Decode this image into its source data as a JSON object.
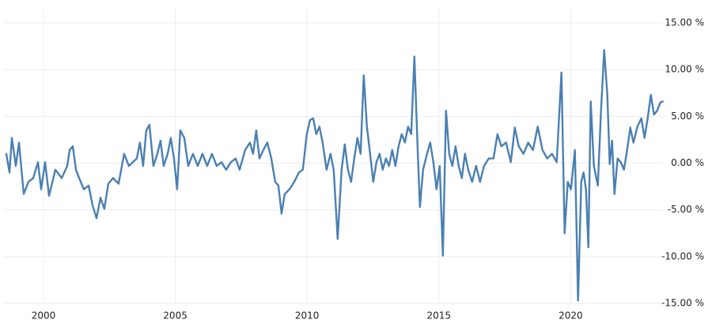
{
  "chart_data": {
    "type": "line",
    "x": [
      1998.59,
      1998.71,
      1998.8,
      1998.95,
      1999.07,
      1999.25,
      1999.43,
      1999.61,
      1999.79,
      1999.91,
      2000.06,
      2000.21,
      2000.45,
      2000.69,
      2000.9,
      2000.99,
      2001.11,
      2001.23,
      2001.35,
      2001.53,
      2001.71,
      2001.86,
      2002.01,
      2002.16,
      2002.31,
      2002.46,
      2002.64,
      2002.85,
      2003.06,
      2003.24,
      2003.39,
      2003.54,
      2003.66,
      2003.78,
      2003.9,
      2004.02,
      2004.17,
      2004.32,
      2004.44,
      2004.56,
      2004.71,
      2004.83,
      2004.95,
      2005.07,
      2005.19,
      2005.34,
      2005.49,
      2005.67,
      2005.85,
      2006.03,
      2006.21,
      2006.39,
      2006.57,
      2006.75,
      2006.93,
      2007.11,
      2007.29,
      2007.44,
      2007.65,
      2007.83,
      2007.95,
      2008.07,
      2008.19,
      2008.34,
      2008.49,
      2008.64,
      2008.79,
      2008.91,
      2009.03,
      2009.15,
      2009.33,
      2009.51,
      2009.69,
      2009.84,
      2009.99,
      2010.11,
      2010.23,
      2010.35,
      2010.47,
      2010.59,
      2010.74,
      2010.89,
      2011.01,
      2011.16,
      2011.31,
      2011.43,
      2011.55,
      2011.67,
      2011.79,
      2011.91,
      2012.03,
      2012.15,
      2012.27,
      2012.39,
      2012.51,
      2012.63,
      2012.75,
      2012.87,
      2012.99,
      2013.11,
      2013.23,
      2013.35,
      2013.47,
      2013.59,
      2013.71,
      2013.83,
      2013.95,
      2014.07,
      2014.19,
      2014.28,
      2014.4,
      2014.55,
      2014.67,
      2014.79,
      2014.91,
      2015.03,
      2015.15,
      2015.27,
      2015.39,
      2015.51,
      2015.63,
      2015.75,
      2015.87,
      2015.99,
      2016.11,
      2016.26,
      2016.41,
      2016.56,
      2016.71,
      2016.89,
      2017.07,
      2017.22,
      2017.37,
      2017.55,
      2017.73,
      2017.88,
      2018.03,
      2018.21,
      2018.39,
      2018.57,
      2018.75,
      2018.93,
      2019.11,
      2019.29,
      2019.47,
      2019.65,
      2019.77,
      2019.89,
      2020.01,
      2020.16,
      2020.28,
      2020.4,
      2020.49,
      2020.58,
      2020.67,
      2020.76,
      2020.88,
      2021.03,
      2021.15,
      2021.27,
      2021.39,
      2021.48,
      2021.57,
      2021.66,
      2021.78,
      2021.9,
      2022.02,
      2022.14,
      2022.26,
      2022.38,
      2022.53,
      2022.68,
      2022.8,
      2022.92,
      2023.04,
      2023.16,
      2023.28,
      2023.4,
      2023.49
    ],
    "series": [
      {
        "color": "#4a80b2",
        "values": [
          1.0,
          -1,
          2.7,
          -0.3,
          2.2,
          -3.3,
          -2,
          -1.6,
          0.1,
          -2.8,
          0.1,
          -3.5,
          -0.7,
          -1.6,
          -0.3,
          1.4,
          1.8,
          -0.7,
          -1.6,
          -2.8,
          -2.4,
          -4.5,
          -5.9,
          -3.7,
          -4.9,
          -2.2,
          -1.6,
          -2.2,
          1.0,
          -0.3,
          0.1,
          0.5,
          2.2,
          -0.3,
          3.5,
          4.1,
          -0.3,
          1,
          2.4,
          -0.3,
          1,
          2.7,
          0.5,
          -2.8,
          3.5,
          2.7,
          -0.3,
          1,
          -0.3,
          1,
          -0.3,
          1,
          -0.3,
          0.1,
          -0.7,
          0.1,
          0.5,
          -0.7,
          1.4,
          2.2,
          1.0,
          3.5,
          0.5,
          1.4,
          2.2,
          0.5,
          -2,
          -2.4,
          -5.4,
          -3.3,
          -2.8,
          -2,
          -1,
          -0.7,
          3.1,
          4.6,
          4.8,
          3.1,
          3.9,
          2.2,
          -0.7,
          1,
          -0.7,
          -8.1,
          -0.7,
          2,
          -0.7,
          -2,
          0.5,
          2.7,
          1,
          9.4,
          3.9,
          1,
          -2,
          0.1,
          1,
          -0.7,
          0.5,
          -0.3,
          1.4,
          -0.3,
          1.8,
          3.1,
          2.2,
          3.9,
          3.1,
          11.4,
          1.8,
          -4.7,
          -0.7,
          1,
          2.2,
          0.1,
          -2.8,
          -0.3,
          -9.9,
          5.6,
          1,
          -0.3,
          1.8,
          -0.3,
          -1.6,
          1,
          -0.7,
          -2,
          -0.3,
          -2,
          -0.3,
          0.5,
          0.5,
          3.1,
          1.8,
          2.2,
          0.1,
          3.8,
          1.8,
          1,
          2.2,
          1.4,
          3.9,
          1.4,
          0.5,
          1,
          0.1,
          9.7,
          -7.5,
          -2,
          -2.8,
          1.4,
          -14.7,
          -2,
          -1,
          -2.8,
          -9,
          6.6,
          -0.3,
          -2.4,
          5.6,
          12.1,
          7.3,
          -0.1,
          2.4,
          -3.3,
          0.5,
          0.1,
          -0.7,
          1.4,
          3.8,
          2.2,
          3.9,
          4.8,
          2.7,
          4.8,
          7.3,
          5.2,
          5.6,
          6.5,
          6.6
        ]
      }
    ],
    "xlim": [
      1998.5,
      2023.5
    ],
    "xticks": [
      2000,
      2005,
      2010,
      2015,
      2020
    ],
    "ylim": [
      -15,
      15
    ],
    "yticks": [
      {
        "value": -15,
        "label": "-15.00 %"
      },
      {
        "value": -10,
        "label": "-10.00 %"
      },
      {
        "value": -5,
        "label": "-5.00 %"
      },
      {
        "value": 0,
        "label": "0.00 %"
      },
      {
        "value": 5,
        "label": "5.00 %"
      },
      {
        "value": 10,
        "label": "10.00 %"
      },
      {
        "value": 15,
        "label": "15.00 %"
      }
    ],
    "grid": true
  }
}
